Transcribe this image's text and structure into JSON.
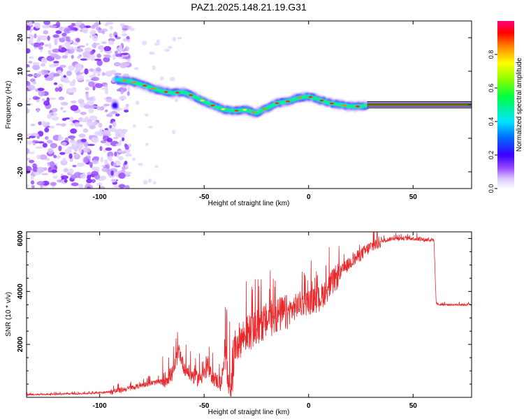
{
  "title": "PAZ1.2025.148.21.19.G31",
  "chart_data": [
    {
      "type": "heatmap",
      "title": "PAZ1.2025.148.21.19.G31",
      "xlabel": "Height of straight line (km)",
      "ylabel": "Frequency (Hz)",
      "xlim": [
        -135,
        78
      ],
      "ylim": [
        -25,
        25
      ],
      "x_ticks": [
        -100,
        -50,
        0,
        50
      ],
      "y_ticks": [
        -20,
        -10,
        0,
        10,
        20
      ],
      "colorbar": {
        "label": "Normalized spectral amplitude",
        "range": [
          0,
          1
        ],
        "ticks": [
          "0.0",
          "0.2",
          "0.4",
          "0.6",
          "0.8"
        ]
      },
      "ridge": {
        "x": [
          -92,
          -85,
          -80,
          -75,
          -70,
          -65,
          -60,
          -55,
          -50,
          -45,
          -40,
          -35,
          -30,
          -25,
          -20,
          -15,
          -10,
          -5,
          0,
          5,
          10,
          15,
          20,
          25,
          30,
          40,
          50,
          60,
          70,
          78
        ],
        "y": [
          7.5,
          7.0,
          6.0,
          5.0,
          4.0,
          3.5,
          3.8,
          2.5,
          1.0,
          -0.5,
          -1.5,
          -1.8,
          -1.5,
          -2.5,
          -1.0,
          0.5,
          1.0,
          2.0,
          2.5,
          1.5,
          0.5,
          0.0,
          -0.5,
          -0.5,
          0.0,
          0.0,
          0.0,
          0.0,
          0.0,
          0.0
        ]
      },
      "noise_region_x": [
        -135,
        -90
      ],
      "grid": false
    },
    {
      "type": "line",
      "xlabel": "Height of straight line (km)",
      "ylabel": "SNR (10 * v/v)",
      "xlim": [
        -135,
        78
      ],
      "ylim": [
        0,
        6250
      ],
      "x_ticks": [
        -100,
        -50,
        0,
        50
      ],
      "y_ticks": [
        2000,
        4000,
        6000
      ],
      "color": "#e8282b",
      "series": [
        {
          "x": [
            -135,
            -120,
            -105,
            -95,
            -85,
            -78,
            -70,
            -65,
            -62,
            -60,
            -57,
            -53,
            -48,
            -45,
            -42,
            -40,
            -38,
            -37,
            -35,
            -30,
            -25,
            -20,
            -15,
            -10,
            -5,
            0,
            5,
            10,
            15,
            20,
            25,
            30,
            35,
            40,
            45,
            50,
            55,
            60,
            61,
            62,
            65,
            70,
            78
          ],
          "y": [
            100,
            120,
            150,
            200,
            350,
            500,
            600,
            900,
            1800,
            1200,
            900,
            700,
            1000,
            700,
            500,
            1500,
            700,
            400,
            2000,
            2400,
            2600,
            2900,
            3100,
            3200,
            3500,
            3600,
            3700,
            4200,
            4700,
            5100,
            5400,
            5700,
            5900,
            6000,
            6000,
            6000,
            5950,
            5950,
            3600,
            3500,
            3500,
            3500,
            3500
          ]
        }
      ],
      "grid": false
    }
  ]
}
